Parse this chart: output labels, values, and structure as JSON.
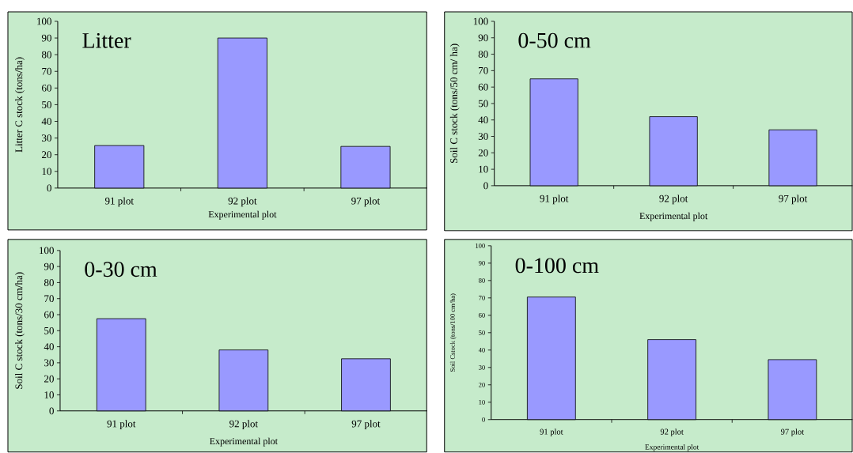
{
  "chart_data": [
    {
      "type": "bar",
      "title": "Litter",
      "xlabel": "Experimental plot",
      "ylabel": "Litter C stock (tons/ha)",
      "categories": [
        "91 plot",
        "92 plot",
        "97 plot"
      ],
      "values": [
        25.5,
        90,
        25
      ],
      "color": "#9999ff",
      "ylim": [
        0,
        100
      ],
      "yticks": [
        0,
        10,
        20,
        30,
        40,
        50,
        60,
        70,
        80,
        90,
        100
      ]
    },
    {
      "type": "bar",
      "title": "0-50 cm",
      "xlabel": "Experimental plot",
      "ylabel": "Soil C stock (tons/50 cm/ ha)",
      "categories": [
        "91 plot",
        "92 plot",
        "97 plot"
      ],
      "values": [
        65,
        42,
        34
      ],
      "color": "#9999ff",
      "ylim": [
        0,
        100
      ],
      "yticks": [
        0,
        10,
        20,
        30,
        40,
        50,
        60,
        70,
        80,
        90,
        100
      ]
    },
    {
      "type": "bar",
      "title": "0-30 cm",
      "xlabel": "Experimental plot",
      "ylabel": "Soil C stock (tons/30 cm/ha)",
      "categories": [
        "91 plot",
        "92 plot",
        "97 plot"
      ],
      "values": [
        57.5,
        38,
        32.5
      ],
      "color": "#9999ff",
      "ylim": [
        0,
        100
      ],
      "yticks": [
        0,
        10,
        20,
        30,
        40,
        50,
        60,
        70,
        80,
        90,
        100
      ]
    },
    {
      "type": "bar",
      "title": "0-100 cm",
      "xlabel": "Experimental plot",
      "ylabel": "Soil Cstock (tons/100 cm/ha)",
      "categories": [
        "91 plot",
        "92 plot",
        "97 plot"
      ],
      "values": [
        70.5,
        46,
        34.5
      ],
      "color": "#9999ff",
      "ylim": [
        0,
        100
      ],
      "yticks": [
        0,
        10,
        20,
        30,
        40,
        50,
        60,
        70,
        80,
        90,
        100
      ]
    }
  ]
}
